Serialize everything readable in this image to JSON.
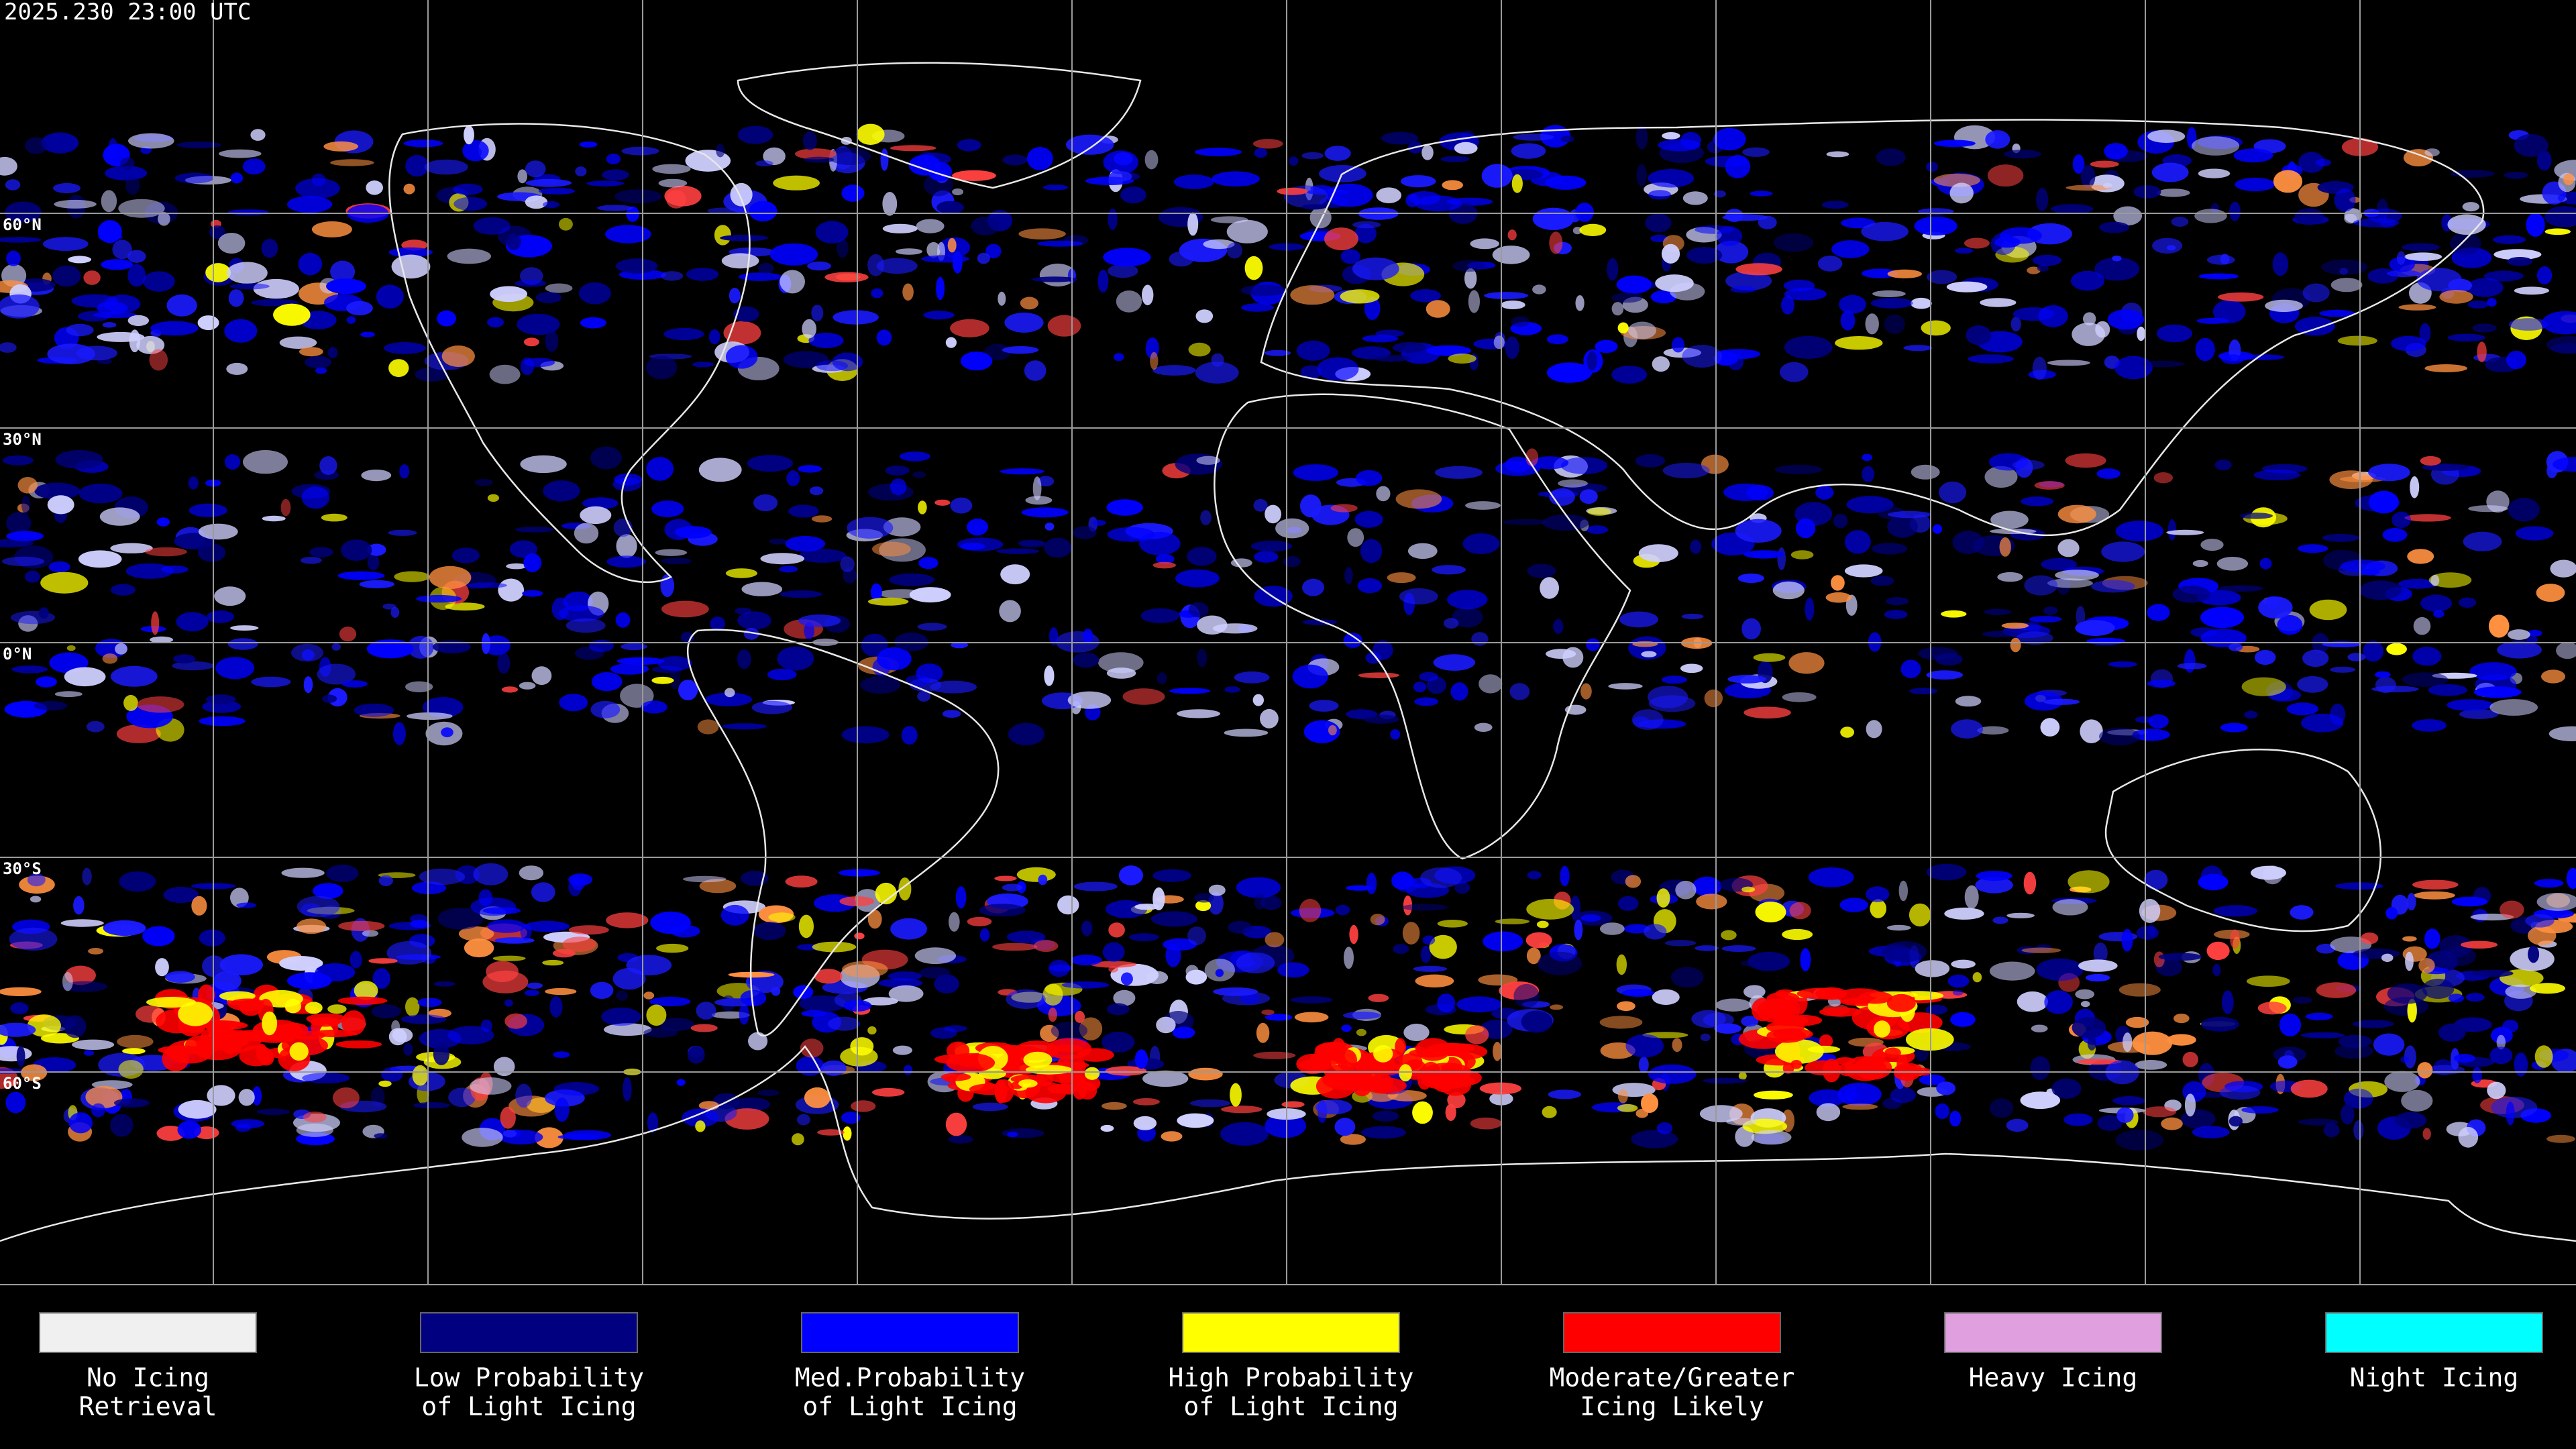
{
  "header": {
    "timestamp": "2025.230 23:00 UTC"
  },
  "latitude_labels": [
    "60°N",
    "30°N",
    "0°N",
    "30°S",
    "60°S"
  ],
  "legend": [
    {
      "lines": [
        "No Icing",
        "Retrieval"
      ],
      "color": "#f0f0f0"
    },
    {
      "lines": [
        "Low Probability",
        "of Light Icing"
      ],
      "color": "#000080"
    },
    {
      "lines": [
        "Med.Probability",
        "of Light Icing"
      ],
      "color": "#0000ff"
    },
    {
      "lines": [
        "High Probability",
        "of Light Icing"
      ],
      "color": "#ffff00"
    },
    {
      "lines": [
        "Moderate/Greater",
        "Icing Likely"
      ],
      "color": "#ff0000"
    },
    {
      "lines": [
        "Heavy Icing"
      ],
      "color": "#e0a0e0"
    },
    {
      "lines": [
        "Night Icing"
      ],
      "color": "#00ffff"
    }
  ]
}
